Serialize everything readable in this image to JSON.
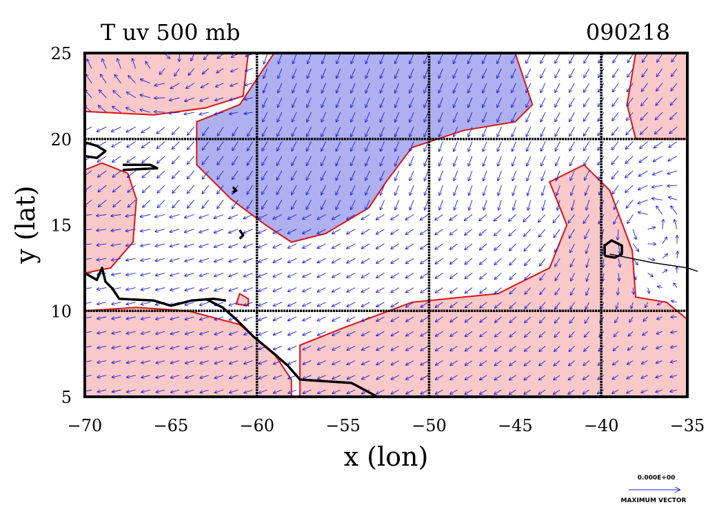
{
  "chart_data": {
    "type": "contour-vector-map",
    "title_left": "T uv 500 mb",
    "title_right": "090218",
    "xlabel": "x (lon)",
    "ylabel": "y (lat)",
    "xlim": [
      -70,
      -35
    ],
    "ylim": [
      5,
      25
    ],
    "x_ticks": [
      -70,
      -65,
      -60,
      -55,
      -50,
      -45,
      -40,
      -35
    ],
    "y_ticks": [
      5,
      10,
      15,
      20,
      25
    ],
    "x_tick_labels": [
      "−70",
      "−65",
      "−60",
      "−55",
      "−50",
      "−45",
      "−40",
      "−35"
    ],
    "y_tick_labels": [
      "5",
      "10",
      "15",
      "20",
      "25"
    ],
    "grid_lon": [
      -60,
      -50,
      -40
    ],
    "grid_lat": [
      10,
      20
    ],
    "colors": {
      "warm_fill": "#f9c8c8",
      "cold_fill": "#aeb0f0",
      "contour": "#e01010",
      "vector": "#1a1adc",
      "coast": "#000000"
    },
    "cold_regions": [
      [
        [
          -61,
          22
        ],
        [
          -59,
          25
        ],
        [
          -45,
          25
        ],
        [
          -44,
          22
        ],
        [
          -45,
          21
        ],
        [
          -48,
          20.5
        ],
        [
          -51,
          19.5
        ],
        [
          -52.5,
          17.5
        ],
        [
          -53.5,
          16
        ],
        [
          -56,
          14.5
        ],
        [
          -58,
          14
        ],
        [
          -59.5,
          15
        ],
        [
          -61.5,
          16.5
        ],
        [
          -63.5,
          18.5
        ],
        [
          -63.5,
          21
        ]
      ]
    ],
    "warm_regions": [
      [
        [
          -70,
          25
        ],
        [
          -60.5,
          25
        ],
        [
          -60.8,
          22.5
        ],
        [
          -63,
          21.8
        ],
        [
          -66,
          21.4
        ],
        [
          -70,
          21.6
        ]
      ],
      [
        [
          -70,
          18.2
        ],
        [
          -69,
          18.6
        ],
        [
          -67.5,
          18
        ],
        [
          -67,
          16.5
        ],
        [
          -67.2,
          14
        ],
        [
          -68.5,
          12.5
        ],
        [
          -70,
          12.2
        ]
      ],
      [
        [
          -70,
          5
        ],
        [
          -70,
          10
        ],
        [
          -67,
          10.2
        ],
        [
          -64,
          10
        ],
        [
          -61,
          9.2
        ],
        [
          -59,
          7.5
        ],
        [
          -58,
          6
        ],
        [
          -58,
          5
        ]
      ],
      [
        [
          -57.5,
          5
        ],
        [
          -57.5,
          8
        ],
        [
          -55,
          9
        ],
        [
          -51,
          10.5
        ],
        [
          -46,
          11
        ],
        [
          -43,
          12.5
        ],
        [
          -42,
          15
        ],
        [
          -43,
          17.5
        ],
        [
          -41,
          18.5
        ],
        [
          -39.5,
          17
        ],
        [
          -38.2,
          13.5
        ],
        [
          -38,
          10.8
        ],
        [
          -36.2,
          10.5
        ],
        [
          -35,
          9.5
        ],
        [
          -35,
          5
        ]
      ],
      [
        [
          -38,
          25
        ],
        [
          -35,
          25
        ],
        [
          -35,
          20
        ],
        [
          -38,
          20
        ],
        [
          -38.5,
          22
        ]
      ],
      [
        [
          -61,
          11
        ],
        [
          -60.5,
          10.7
        ],
        [
          -60.5,
          10.3
        ],
        [
          -61.2,
          10.4
        ]
      ]
    ],
    "coastlines": [
      [
        [
          -70,
          19.8
        ],
        [
          -69.3,
          19.6
        ],
        [
          -68.8,
          19.3
        ],
        [
          -69.3,
          18.9
        ],
        [
          -70,
          19
        ]
      ],
      [
        [
          -67.8,
          18.5
        ],
        [
          -66.2,
          18.5
        ],
        [
          -65.8,
          18.3
        ],
        [
          -67.8,
          18.2
        ]
      ],
      [
        [
          -61.4,
          17.2
        ],
        [
          -61.2,
          17
        ],
        [
          -61.4,
          16.9
        ]
      ],
      [
        [
          -61,
          14.7
        ],
        [
          -60.8,
          14.4
        ],
        [
          -61,
          14.2
        ]
      ],
      [
        [
          -70,
          12.2
        ],
        [
          -69.3,
          11.8
        ],
        [
          -69,
          12.5
        ],
        [
          -68.8,
          11.7
        ],
        [
          -68.4,
          11.3
        ],
        [
          -68,
          10.7
        ],
        [
          -66,
          10.6
        ],
        [
          -65,
          10.3
        ],
        [
          -63.8,
          10.6
        ],
        [
          -62.5,
          10.7
        ],
        [
          -61.8,
          10.6
        ]
      ],
      [
        [
          -63,
          10.7
        ],
        [
          -62,
          10.2
        ],
        [
          -61.2,
          9.5
        ],
        [
          -60.2,
          8.5
        ],
        [
          -59,
          7.5
        ],
        [
          -58.2,
          6.8
        ],
        [
          -57.5,
          6
        ],
        [
          -56,
          5.9
        ],
        [
          -54.5,
          5.8
        ],
        [
          -53,
          5
        ]
      ],
      [
        [
          -39.8,
          13.2
        ],
        [
          -39.2,
          13.1
        ],
        [
          -38.8,
          13.3
        ],
        [
          -38.8,
          13.8
        ],
        [
          -39.4,
          14.1
        ],
        [
          -39.8,
          13.8
        ],
        [
          -39.8,
          13.2
        ]
      ]
    ],
    "track_line": [
      [
        -39.5,
        13.3
      ],
      [
        -37,
        12.8
      ],
      [
        -35,
        12.5
      ],
      [
        -34.4,
        12.3
      ]
    ],
    "vector_field_note": "cyclonic circulation centered near (-37.5, 15.5); anticyclonic near (-66, 24); easterly trades in south",
    "reference_vector": {
      "value_label": "0.000E+00",
      "caption": "MAXIMUM VECTOR"
    }
  }
}
